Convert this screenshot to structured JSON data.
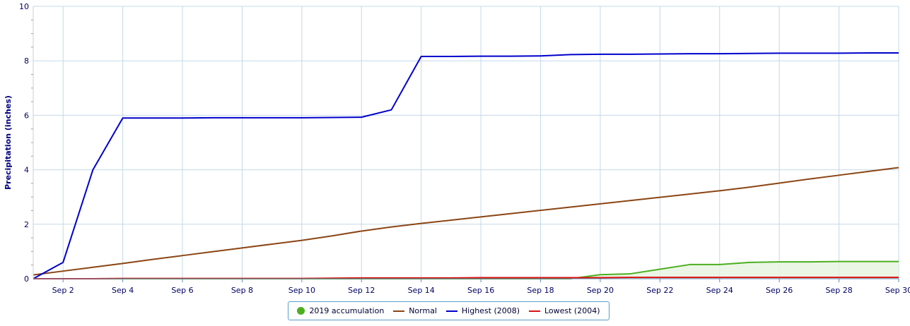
{
  "chart_data": {
    "type": "line",
    "title": "",
    "ylabel": "Precipitation (inches)",
    "xlabel": "",
    "ylim": [
      0,
      10
    ],
    "yticks": [
      0,
      2,
      4,
      6,
      8,
      10
    ],
    "xlim": [
      "2019-09-01",
      "2019-09-30"
    ],
    "xticks": [
      {
        "date": "2019-09-02",
        "label": "Sep 2"
      },
      {
        "date": "2019-09-04",
        "label": "Sep 4"
      },
      {
        "date": "2019-09-06",
        "label": "Sep 6"
      },
      {
        "date": "2019-09-08",
        "label": "Sep 8"
      },
      {
        "date": "2019-09-10",
        "label": "Sep 10"
      },
      {
        "date": "2019-09-12",
        "label": "Sep 12"
      },
      {
        "date": "2019-09-14",
        "label": "Sep 14"
      },
      {
        "date": "2019-09-16",
        "label": "Sep 16"
      },
      {
        "date": "2019-09-18",
        "label": "Sep 18"
      },
      {
        "date": "2019-09-20",
        "label": "Sep 20"
      },
      {
        "date": "2019-09-22",
        "label": "Sep 22"
      },
      {
        "date": "2019-09-24",
        "label": "Sep 24"
      },
      {
        "date": "2019-09-26",
        "label": "Sep 26"
      },
      {
        "date": "2019-09-28",
        "label": "Sep 28"
      },
      {
        "date": "2019-09-30",
        "label": "Sep 30"
      }
    ],
    "grid": true,
    "legend_position": "bottom-center",
    "x": [
      "2019-09-01",
      "2019-09-02",
      "2019-09-03",
      "2019-09-04",
      "2019-09-05",
      "2019-09-06",
      "2019-09-07",
      "2019-09-08",
      "2019-09-09",
      "2019-09-10",
      "2019-09-11",
      "2019-09-12",
      "2019-09-13",
      "2019-09-14",
      "2019-09-15",
      "2019-09-16",
      "2019-09-17",
      "2019-09-18",
      "2019-09-19",
      "2019-09-20",
      "2019-09-21",
      "2019-09-22",
      "2019-09-23",
      "2019-09-24",
      "2019-09-25",
      "2019-09-26",
      "2019-09-27",
      "2019-09-28",
      "2019-09-29",
      "2019-09-30"
    ],
    "series": [
      {
        "name": "2019 accumulation",
        "color": "#4caf1f",
        "fill": "#e6f4e0",
        "symbol": "dot",
        "values": [
          0,
          0,
          0,
          0,
          0,
          0,
          0,
          0,
          0,
          0,
          0,
          0,
          0,
          0,
          0,
          0,
          0,
          0,
          0,
          0.15,
          0.18,
          0.35,
          0.52,
          0.52,
          0.6,
          0.62,
          0.62,
          0.63,
          0.63,
          0.63
        ]
      },
      {
        "name": "Normal",
        "color": "#8b4513",
        "symbol": "line",
        "values": [
          0.14,
          0.28,
          0.42,
          0.56,
          0.71,
          0.85,
          0.99,
          1.13,
          1.27,
          1.41,
          1.57,
          1.75,
          1.9,
          2.03,
          2.15,
          2.27,
          2.39,
          2.51,
          2.63,
          2.75,
          2.87,
          2.99,
          3.11,
          3.23,
          3.36,
          3.51,
          3.66,
          3.8,
          3.94,
          4.08
        ]
      },
      {
        "name": "Highest (2008)",
        "color": "#0000cc",
        "symbol": "line",
        "values": [
          0,
          0.6,
          4.0,
          5.9,
          5.9,
          5.9,
          5.91,
          5.91,
          5.91,
          5.91,
          5.92,
          5.93,
          6.2,
          8.16,
          8.16,
          8.17,
          8.17,
          8.18,
          8.23,
          8.24,
          8.24,
          8.25,
          8.26,
          8.26,
          8.27,
          8.28,
          8.28,
          8.28,
          8.29,
          8.29
        ]
      },
      {
        "name": "Lowest (2004)",
        "color": "#dd1111",
        "symbol": "line",
        "values": [
          0,
          0,
          0,
          0.01,
          0.01,
          0.01,
          0.01,
          0.01,
          0.01,
          0.01,
          0.02,
          0.03,
          0.03,
          0.03,
          0.03,
          0.04,
          0.04,
          0.04,
          0.04,
          0.04,
          0.05,
          0.05,
          0.05,
          0.05,
          0.05,
          0.05,
          0.05,
          0.05,
          0.05,
          0.05
        ]
      }
    ]
  },
  "colors": {
    "grid": "#c3d9e8",
    "axis": "#5a8fb8",
    "legend_border": "#5aa0c8"
  }
}
